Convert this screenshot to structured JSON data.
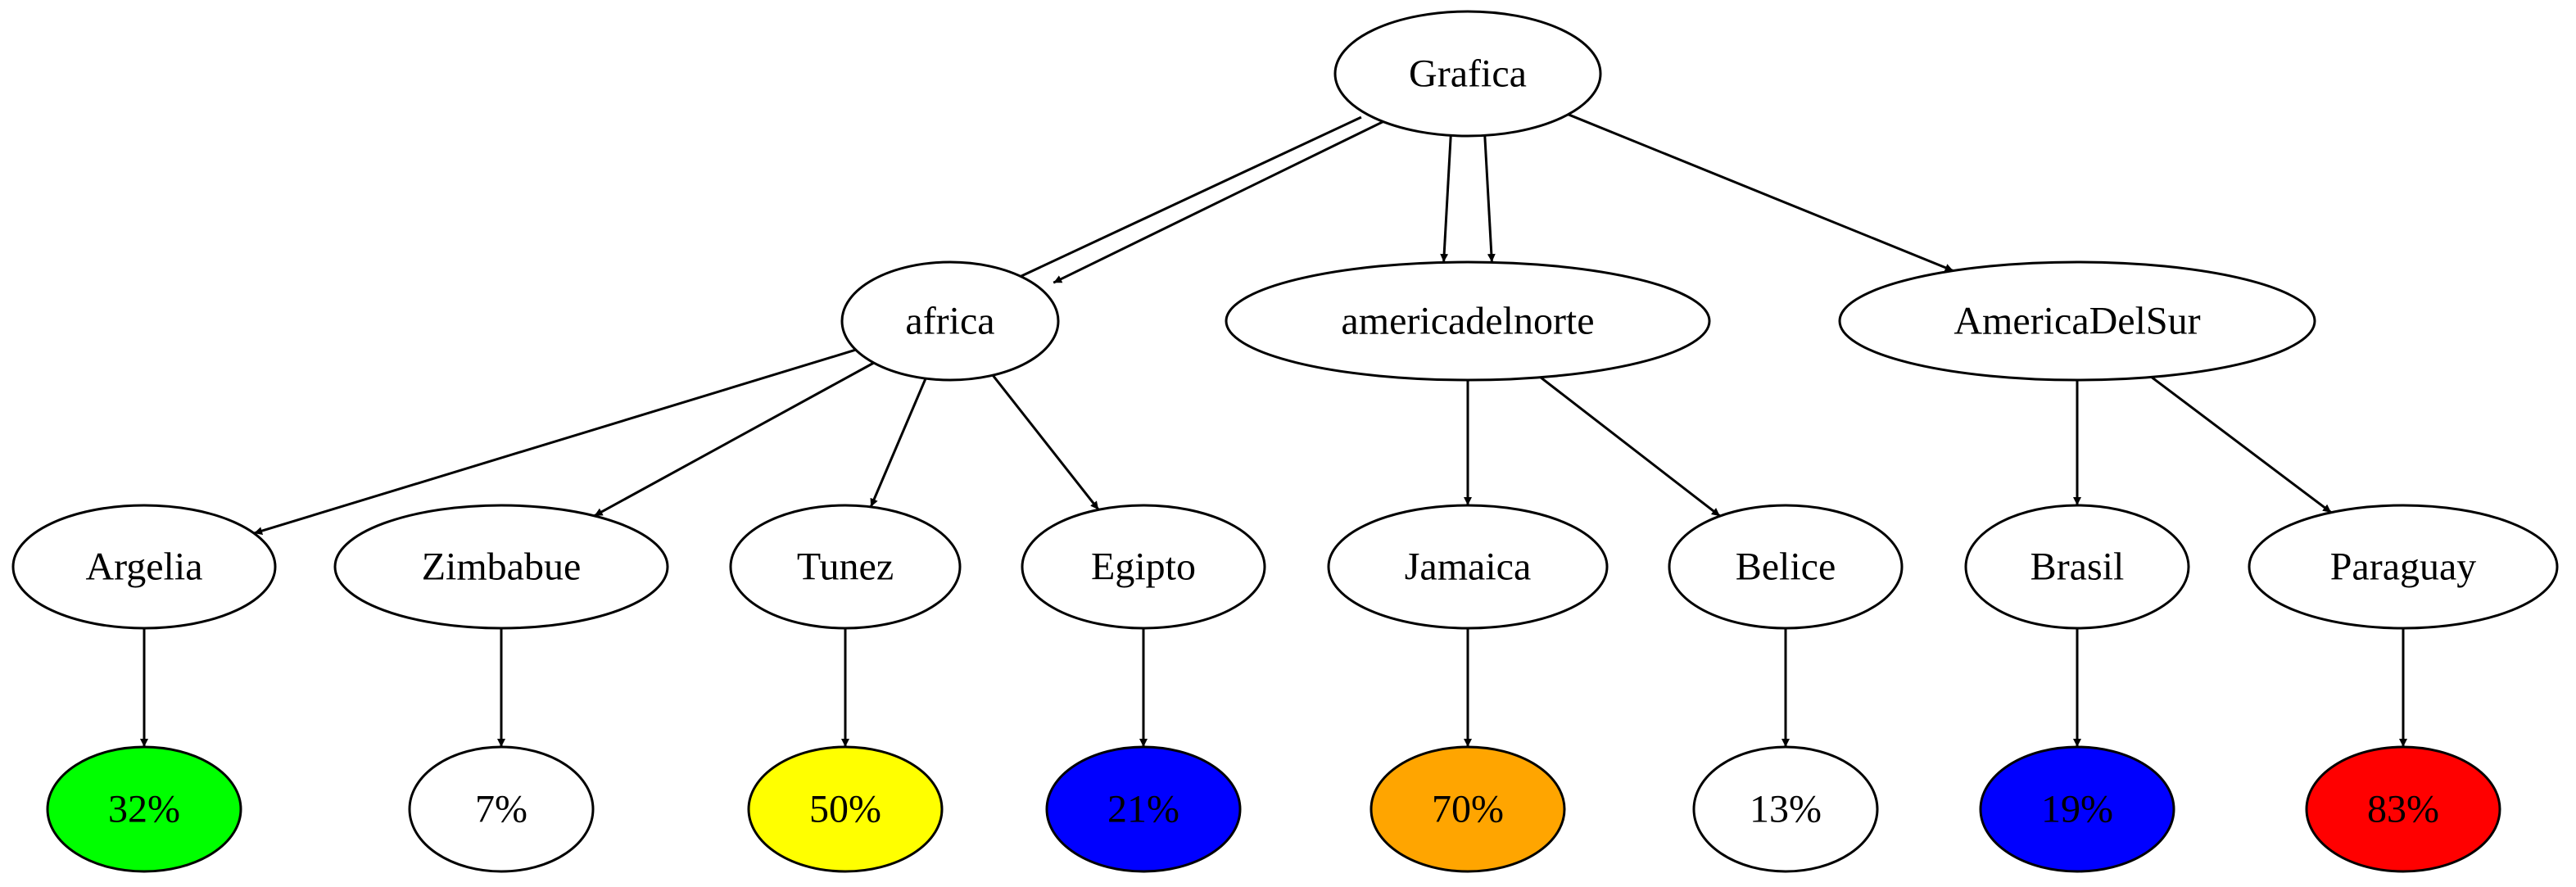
{
  "graph": {
    "root": {
      "id": "grafica",
      "label": "Grafica"
    },
    "regions": [
      {
        "id": "africa",
        "label": "africa"
      },
      {
        "id": "americadelnorte",
        "label": "americadelnorte"
      },
      {
        "id": "americadelsur",
        "label": "AmericaDelSur"
      }
    ],
    "countries": [
      {
        "id": "argelia",
        "label": "Argelia",
        "parent": "africa",
        "value": "32%",
        "color": "#00ff00"
      },
      {
        "id": "zimbabue",
        "label": "Zimbabue",
        "parent": "africa",
        "value": "7%",
        "color": "#ffffff"
      },
      {
        "id": "tunez",
        "label": "Tunez",
        "parent": "africa",
        "value": "50%",
        "color": "#ffff00"
      },
      {
        "id": "egipto",
        "label": "Egipto",
        "parent": "africa",
        "value": "21%",
        "color": "#0000ff"
      },
      {
        "id": "jamaica",
        "label": "Jamaica",
        "parent": "americadelnorte",
        "value": "70%",
        "color": "#ffa500"
      },
      {
        "id": "belice",
        "label": "Belice",
        "parent": "americadelnorte",
        "value": "13%",
        "color": "#ffffff"
      },
      {
        "id": "brasil",
        "label": "Brasil",
        "parent": "americadelsur",
        "value": "19%",
        "color": "#0000ff"
      },
      {
        "id": "paraguay",
        "label": "Paraguay",
        "parent": "americadelsur",
        "value": "83%",
        "color": "#ff0000"
      }
    ],
    "edges": [
      {
        "from": "grafica",
        "to": "africa",
        "count": 2
      },
      {
        "from": "grafica",
        "to": "americadelnorte",
        "count": 2
      },
      {
        "from": "grafica",
        "to": "americadelsur",
        "count": 1
      },
      {
        "from": "africa",
        "to": "argelia",
        "count": 1
      },
      {
        "from": "africa",
        "to": "zimbabue",
        "count": 1
      },
      {
        "from": "africa",
        "to": "tunez",
        "count": 1
      },
      {
        "from": "africa",
        "to": "egipto",
        "count": 1
      },
      {
        "from": "americadelnorte",
        "to": "jamaica",
        "count": 1
      },
      {
        "from": "americadelnorte",
        "to": "belice",
        "count": 1
      },
      {
        "from": "americadelsur",
        "to": "brasil",
        "count": 1
      },
      {
        "from": "americadelsur",
        "to": "paraguay",
        "count": 1
      },
      {
        "from": "argelia",
        "to": "argelia-value",
        "count": 1
      },
      {
        "from": "zimbabue",
        "to": "zimbabue-value",
        "count": 1
      },
      {
        "from": "tunez",
        "to": "tunez-value",
        "count": 1
      },
      {
        "from": "egipto",
        "to": "egipto-value",
        "count": 1
      },
      {
        "from": "jamaica",
        "to": "jamaica-value",
        "count": 1
      },
      {
        "from": "belice",
        "to": "belice-value",
        "count": 1
      },
      {
        "from": "brasil",
        "to": "brasil-value",
        "count": 1
      },
      {
        "from": "paraguay",
        "to": "paraguay-value",
        "count": 1
      }
    ]
  }
}
